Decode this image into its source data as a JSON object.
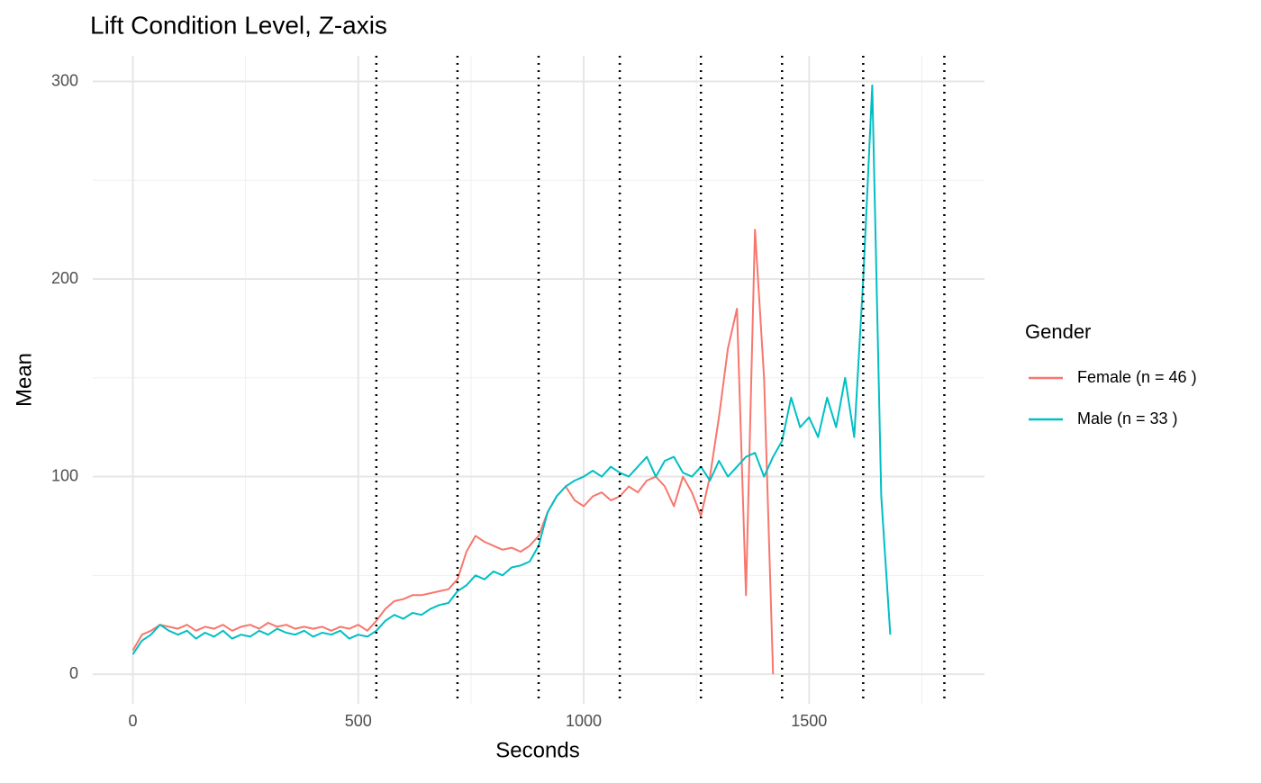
{
  "chart_data": {
    "type": "line",
    "title": "Lift Condition Level, Z-axis",
    "x_label": "Seconds",
    "y_label": "Mean",
    "legend_title": "Gender",
    "legend_position": "right",
    "grid": true,
    "xlim": [
      -89,
      1889
    ],
    "ylim": [
      -15,
      313
    ],
    "xticks": [
      0,
      500,
      1000,
      1500
    ],
    "yticks": [
      0,
      100,
      200,
      300
    ],
    "xminor": [
      250,
      750,
      1250,
      1750
    ],
    "yminor": [
      50,
      150,
      250
    ],
    "vlines": [
      540,
      720,
      900,
      1080,
      1260,
      1440,
      1620,
      1800
    ],
    "x": [
      0,
      20,
      40,
      60,
      80,
      100,
      120,
      140,
      160,
      180,
      200,
      220,
      240,
      260,
      280,
      300,
      320,
      340,
      360,
      380,
      400,
      420,
      440,
      460,
      480,
      500,
      520,
      540,
      560,
      580,
      600,
      620,
      640,
      660,
      680,
      700,
      720,
      740,
      760,
      780,
      800,
      820,
      840,
      860,
      880,
      900,
      920,
      940,
      960,
      980,
      1000,
      1020,
      1040,
      1060,
      1080,
      1100,
      1120,
      1140,
      1160,
      1180,
      1200,
      1220,
      1240,
      1260,
      1280,
      1300,
      1320,
      1340,
      1360,
      1380,
      1400,
      1420,
      1440,
      1460,
      1480,
      1500,
      1520,
      1540,
      1560,
      1580,
      1600,
      1620,
      1640,
      1660,
      1680
    ],
    "series": [
      {
        "name": "Female (n = 46 )",
        "color": "#F8766D",
        "values": [
          12,
          20,
          22,
          25,
          24,
          23,
          25,
          22,
          24,
          23,
          25,
          22,
          24,
          25,
          23,
          26,
          24,
          25,
          23,
          24,
          23,
          24,
          22,
          24,
          23,
          25,
          22,
          27,
          33,
          37,
          38,
          40,
          40,
          41,
          42,
          43,
          48,
          62,
          70,
          67,
          65,
          63,
          64,
          62,
          65,
          70,
          82,
          90,
          95,
          88,
          85,
          90,
          92,
          88,
          90,
          95,
          92,
          98,
          100,
          95,
          85,
          100,
          92,
          80,
          100,
          130,
          165,
          185,
          40,
          225,
          150,
          0,
          null,
          null,
          null,
          null,
          null,
          null,
          null,
          null,
          null,
          null,
          null,
          null,
          null
        ]
      },
      {
        "name": "Male (n = 33 )",
        "color": "#00BFC4",
        "values": [
          10,
          17,
          20,
          25,
          22,
          20,
          22,
          18,
          21,
          19,
          22,
          18,
          20,
          19,
          22,
          20,
          23,
          21,
          20,
          22,
          19,
          21,
          20,
          22,
          18,
          20,
          19,
          22,
          27,
          30,
          28,
          31,
          30,
          33,
          35,
          36,
          42,
          45,
          50,
          48,
          52,
          50,
          54,
          55,
          57,
          65,
          82,
          90,
          95,
          98,
          100,
          103,
          100,
          105,
          102,
          100,
          105,
          110,
          100,
          108,
          110,
          102,
          100,
          105,
          98,
          108,
          100,
          105,
          110,
          112,
          100,
          110,
          118,
          140,
          125,
          130,
          120,
          140,
          125,
          150,
          120,
          200,
          298,
          90,
          20
        ]
      }
    ]
  }
}
